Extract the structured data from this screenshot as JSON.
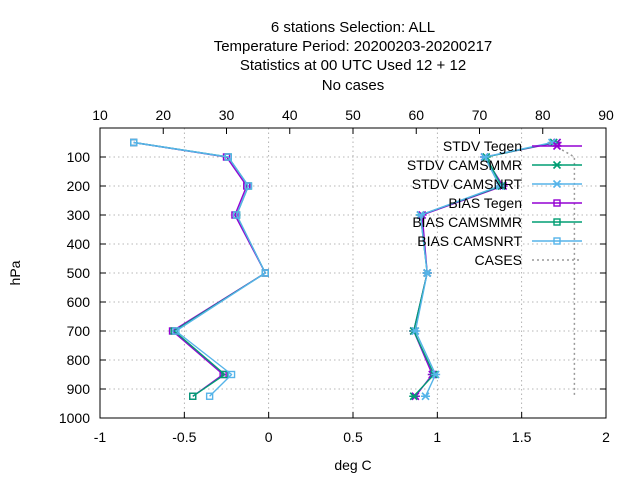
{
  "chart_data": {
    "type": "line",
    "title_lines": [
      "6 stations Selection: ALL",
      "Temperature  Period: 20200203-20200217",
      "Statistics at 00 UTC  Used  12 + 12",
      "No cases"
    ],
    "xlabel": "deg C",
    "ylabel": "hPa",
    "xlim": [
      -1,
      2
    ],
    "x2lim": [
      10,
      90
    ],
    "ylim": [
      1000,
      0
    ],
    "x_ticks": [
      "-1",
      "-0.5",
      "0",
      "0.5",
      "1",
      "1.5",
      "2"
    ],
    "x2_ticks": [
      "10",
      "20",
      "30",
      "40",
      "50",
      "60",
      "70",
      "80",
      "90"
    ],
    "y_ticks": [
      "100",
      "200",
      "300",
      "400",
      "500",
      "600",
      "700",
      "800",
      "900",
      "1000"
    ],
    "grid": true,
    "legend_position": "top-right",
    "colors": {
      "tegen": "#9400d3",
      "camsmmr": "#009e73",
      "camsnrt": "#56b4e9",
      "cases": "#999999"
    },
    "series": [
      {
        "name": "STDV Tegen",
        "color_key": "tegen",
        "marker": "x",
        "y": [
          50,
          100,
          200,
          300,
          500,
          700,
          850,
          925
        ],
        "x": [
          1.71,
          1.28,
          1.39,
          0.91,
          0.94,
          0.86,
          0.97,
          0.87
        ]
      },
      {
        "name": "STDV CAMSMMR",
        "color_key": "camsmmr",
        "marker": "x",
        "y": [
          50,
          100,
          200,
          300,
          500,
          700,
          850,
          925
        ],
        "x": [
          1.69,
          1.29,
          1.38,
          0.9,
          0.94,
          0.86,
          0.98,
          0.86
        ]
      },
      {
        "name": "STDV CAMSNRT",
        "color_key": "camsnrt",
        "marker": "x",
        "y": [
          50,
          100,
          200,
          300,
          500,
          700,
          850,
          925
        ],
        "x": [
          1.68,
          1.28,
          1.37,
          0.9,
          0.94,
          0.87,
          0.99,
          0.93
        ]
      },
      {
        "name": "BIAS Tegen",
        "color_key": "tegen",
        "marker": "square",
        "y": [
          50,
          100,
          200,
          300,
          500,
          700,
          850,
          925
        ],
        "x": [
          -0.8,
          -0.25,
          -0.13,
          -0.2,
          -0.02,
          -0.57,
          -0.27,
          -0.45
        ]
      },
      {
        "name": "BIAS CAMSMMR",
        "color_key": "camsmmr",
        "marker": "square",
        "y": [
          50,
          100,
          200,
          300,
          500,
          700,
          850,
          925
        ],
        "x": [
          -0.8,
          -0.24,
          -0.12,
          -0.19,
          -0.02,
          -0.56,
          -0.26,
          -0.45
        ]
      },
      {
        "name": "BIAS CAMSNRT",
        "color_key": "camsnrt",
        "marker": "square",
        "y": [
          50,
          100,
          200,
          300,
          500,
          700,
          850,
          925
        ],
        "x": [
          -0.8,
          -0.24,
          -0.12,
          -0.19,
          -0.02,
          -0.55,
          -0.22,
          -0.35
        ]
      },
      {
        "name": "CASES",
        "color_key": "cases",
        "marker": "none",
        "dotted": true,
        "axis": "x2",
        "y": [
          50,
          100,
          925
        ],
        "x2": [
          81,
          85,
          85
        ]
      }
    ]
  }
}
